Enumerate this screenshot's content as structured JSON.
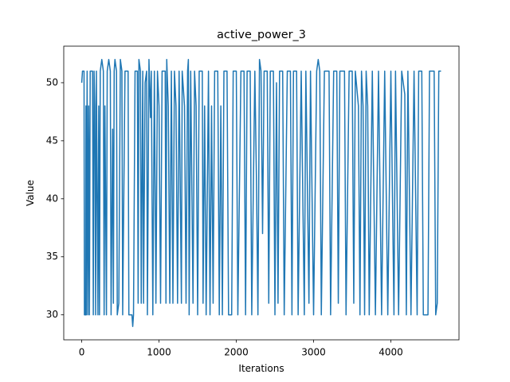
{
  "chart_data": {
    "type": "line",
    "title": "active_power_3",
    "x_label": "Iterations",
    "y_label": "Value",
    "x": [
      0,
      10,
      30,
      35,
      50,
      55,
      60,
      70,
      80,
      90,
      100,
      110,
      140,
      150,
      160,
      170,
      180,
      190,
      210,
      220,
      230,
      240,
      260,
      280,
      290,
      300,
      320,
      330,
      350,
      370,
      380,
      400,
      410,
      420,
      430,
      450,
      460,
      480,
      500,
      520,
      530,
      560,
      600,
      610,
      650,
      660,
      670,
      690,
      720,
      730,
      740,
      760,
      770,
      790,
      800,
      820,
      840,
      850,
      870,
      890,
      900,
      920,
      940,
      960,
      980,
      1000,
      1020,
      1040,
      1080,
      1090,
      1100,
      1120,
      1140,
      1160,
      1180,
      1200,
      1220,
      1240,
      1260,
      1290,
      1300,
      1330,
      1350,
      1370,
      1380,
      1390,
      1410,
      1440,
      1460,
      1480,
      1500,
      1520,
      1560,
      1570,
      1590,
      1610,
      1640,
      1660,
      1680,
      1700,
      1720,
      1760,
      1780,
      1800,
      1820,
      1840,
      1880,
      1900,
      1940,
      1960,
      2000,
      2020,
      2060,
      2100,
      2120,
      2140,
      2180,
      2200,
      2240,
      2260,
      2280,
      2300,
      2320,
      2340,
      2360,
      2400,
      2420,
      2440,
      2480,
      2500,
      2520,
      2540,
      2560,
      2600,
      2620,
      2660,
      2700,
      2720,
      2740,
      2780,
      2800,
      2840,
      2880,
      2900,
      2940,
      2960,
      3000,
      3040,
      3060,
      3080,
      3100,
      3140,
      3200,
      3220,
      3260,
      3300,
      3320,
      3340,
      3400,
      3420,
      3460,
      3500,
      3520,
      3540,
      3580,
      3600,
      3620,
      3640,
      3660,
      3680,
      3700,
      3720,
      3760,
      3800,
      3840,
      3880,
      3920,
      3960,
      4000,
      4040,
      4060,
      4100,
      4140,
      4180,
      4200,
      4220,
      4260,
      4300,
      4340,
      4360,
      4400,
      4420,
      4480,
      4500,
      4560,
      4580,
      4600,
      4620,
      4649
    ],
    "series": [
      {
        "color": "#1f77b4",
        "values": [
          50,
          51,
          51,
          30,
          30,
          48,
          30,
          51,
          30,
          48,
          30,
          51,
          51,
          30,
          51,
          48,
          30,
          51,
          30,
          48,
          30,
          51,
          52,
          51,
          30,
          48,
          30,
          51,
          52,
          51,
          30,
          46,
          31,
          51,
          52,
          51,
          30,
          31,
          52,
          51,
          30,
          51,
          51,
          30,
          30,
          29,
          30,
          51,
          51,
          31,
          52,
          51,
          31,
          51,
          31,
          50,
          51,
          30,
          52,
          47,
          51,
          30,
          51,
          31,
          51,
          48,
          31,
          51,
          51,
          31,
          52,
          48,
          31,
          51,
          31,
          51,
          48,
          31,
          51,
          31,
          51,
          48,
          31,
          51,
          52,
          30,
          51,
          31,
          51,
          48,
          30,
          51,
          51,
          31,
          48,
          30,
          51,
          30,
          48,
          31,
          51,
          51,
          30,
          48,
          30,
          51,
          51,
          30,
          30,
          51,
          51,
          30,
          51,
          51,
          30,
          51,
          51,
          30,
          51,
          42,
          30,
          52,
          51,
          37,
          51,
          51,
          31,
          51,
          51,
          30,
          50,
          31,
          51,
          51,
          30,
          51,
          51,
          30,
          51,
          51,
          30,
          51,
          30,
          51,
          31,
          51,
          30,
          51,
          52,
          51,
          30,
          51,
          51,
          30,
          51,
          51,
          31,
          51,
          51,
          30,
          51,
          51,
          31,
          51,
          48,
          30,
          51,
          48,
          30,
          51,
          48,
          30,
          51,
          30,
          51,
          30,
          51,
          30,
          51,
          30,
          51,
          30,
          51,
          49,
          30,
          51,
          30,
          51,
          30,
          51,
          51,
          30,
          30,
          51,
          51,
          30,
          31,
          51,
          51
        ]
      }
    ],
    "xlim": [
      -232.45,
      4881.45
    ],
    "ylim": [
      27.85,
      53.15
    ],
    "xticks": [
      0,
      1000,
      2000,
      3000,
      4000
    ],
    "yticks": [
      30,
      35,
      40,
      45,
      50
    ]
  }
}
